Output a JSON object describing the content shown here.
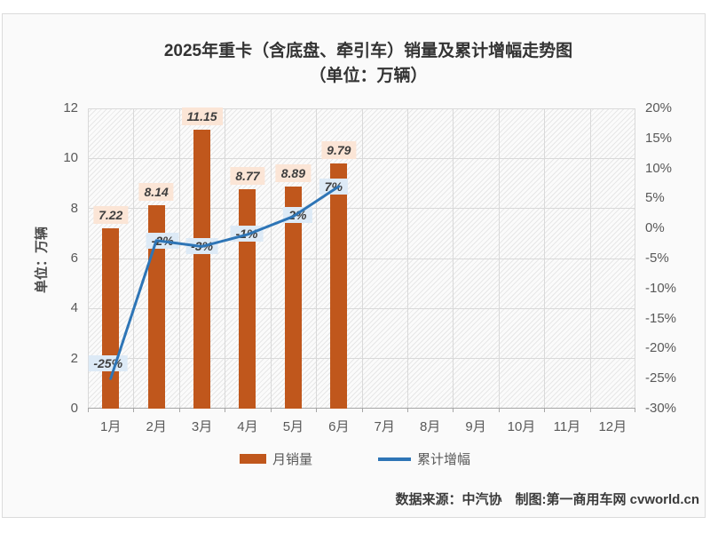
{
  "title": {
    "line1": "2025年重卡（含底盘、牵引车）销量及累计增幅走势图",
    "line2": "（单位：万辆）"
  },
  "chart_data": {
    "type": "combo-bar-line",
    "categories": [
      "1月",
      "2月",
      "3月",
      "4月",
      "5月",
      "6月",
      "7月",
      "8月",
      "9月",
      "10月",
      "11月",
      "12月"
    ],
    "series": [
      {
        "name": "月销量",
        "type": "bar",
        "values": [
          7.22,
          8.14,
          11.15,
          8.77,
          8.89,
          9.79,
          null,
          null,
          null,
          null,
          null,
          null
        ],
        "labels": [
          "7.22",
          "8.14",
          "11.15",
          "8.77",
          "8.89",
          "9.79"
        ],
        "color": "#C0571C",
        "label_bg": "#FBE5D6",
        "axis": "left"
      },
      {
        "name": "累计增幅",
        "type": "line",
        "values": [
          -25,
          -2,
          -3,
          -1,
          2,
          7,
          null,
          null,
          null,
          null,
          null,
          null
        ],
        "labels": [
          "-25%",
          "-2%",
          "-3%",
          "-1%",
          "2%",
          "7%"
        ],
        "color": "#2E75B6",
        "label_bg": "#DDEAF6",
        "axis": "right"
      }
    ],
    "left_axis": {
      "title": "单位：万辆",
      "min": 0,
      "max": 12,
      "ticks": [
        0,
        2,
        4,
        6,
        8,
        10,
        12
      ]
    },
    "right_axis": {
      "min": -30,
      "max": 20,
      "tick_labels": [
        "20%",
        "15%",
        "10%",
        "5%",
        "0%",
        "-5%",
        "-10%",
        "-15%",
        "-20%",
        "-25%",
        "-30%"
      ]
    },
    "grid": true,
    "plot_hatch": true,
    "legend_position": "bottom"
  },
  "colors": {
    "bar": "#C0571C",
    "line": "#2E75B6",
    "bar_label_bg": "#FBE5D6",
    "line_label_bg": "#DDEAF6",
    "gridline": "#D9D9D9",
    "axis_text": "#595959"
  },
  "footer": {
    "text": "数据来源：中汽协　制图:第一商用车网 cvworld.cn"
  }
}
